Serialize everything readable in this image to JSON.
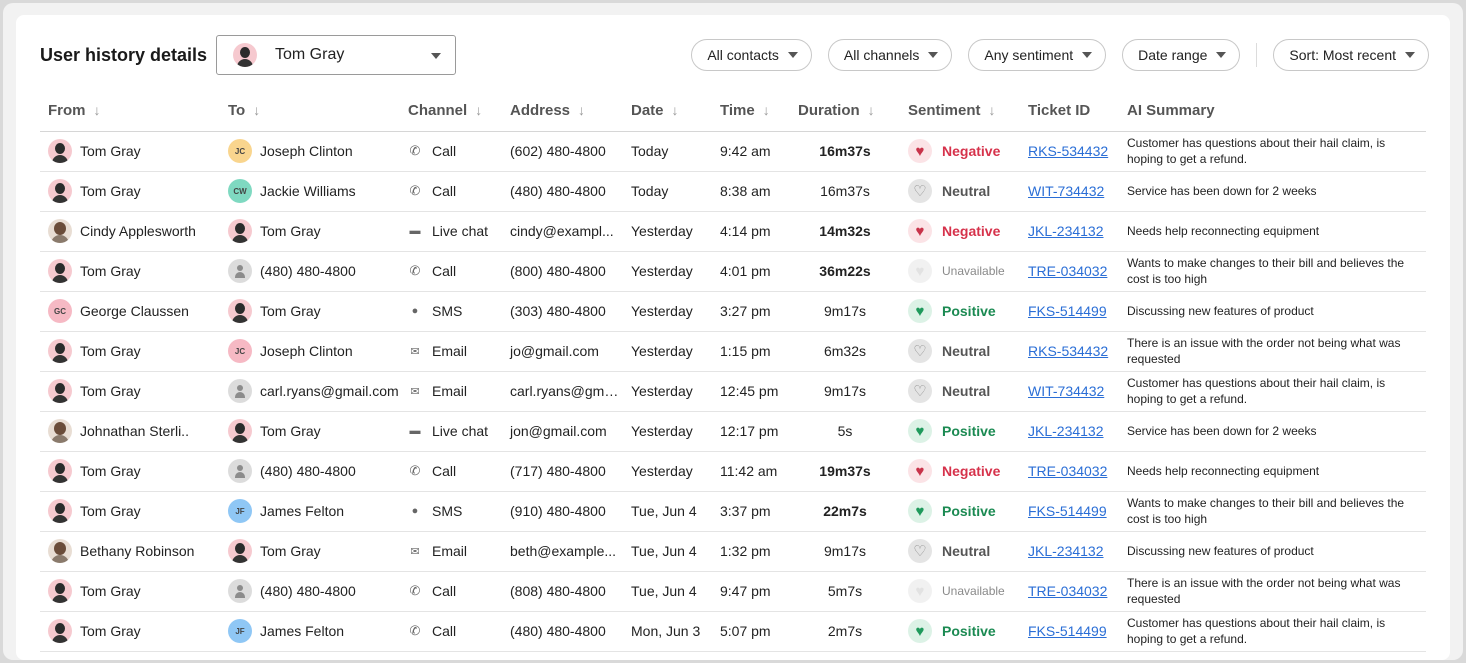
{
  "header": {
    "title": "User history details",
    "user_select": {
      "value": "Tom Gray"
    },
    "filters": [
      {
        "label": "All contacts"
      },
      {
        "label": "All channels"
      },
      {
        "label": "Any sentiment"
      },
      {
        "label": "Date range"
      }
    ],
    "sort": {
      "label": "Sort: Most recent"
    }
  },
  "table": {
    "columns": [
      {
        "label": "From",
        "sortable": true
      },
      {
        "label": "To",
        "sortable": true
      },
      {
        "label": "Channel",
        "sortable": true
      },
      {
        "label": "Address",
        "sortable": true
      },
      {
        "label": "Date",
        "sortable": true
      },
      {
        "label": "Time",
        "sortable": true
      },
      {
        "label": "Duration",
        "sortable": true
      },
      {
        "label": "Sentiment",
        "sortable": true
      },
      {
        "label": "Ticket ID",
        "sortable": false
      },
      {
        "label": "AI Summary",
        "sortable": false
      }
    ],
    "rows": [
      {
        "from": {
          "name": "Tom Gray",
          "avatar": "tom"
        },
        "to": {
          "name": "Joseph Clinton",
          "avatar": "initials",
          "initials": "JC",
          "color": "#f9d58e"
        },
        "channel": {
          "label": "Call",
          "icon": "phone-icon"
        },
        "address": "(602) 480-4800",
        "date": "Today",
        "time": "9:42 am",
        "duration": "16m37s",
        "duration_bold": true,
        "sentiment": "Negative",
        "sentiment_type": "neg",
        "ticket": "RKS-534432",
        "summary": "Customer has questions about their hail claim, is hoping to get a refund."
      },
      {
        "from": {
          "name": "Tom Gray",
          "avatar": "tom"
        },
        "to": {
          "name": "Jackie Williams",
          "avatar": "initials",
          "initials": "CW",
          "color": "#7fd9c1"
        },
        "channel": {
          "label": "Call",
          "icon": "phone-icon"
        },
        "address": "(480) 480-4800",
        "date": "Today",
        "time": "8:38 am",
        "duration": "16m37s",
        "duration_bold": false,
        "sentiment": "Neutral",
        "sentiment_type": "neu",
        "ticket": "WIT-734432",
        "summary": "Service has been down for 2 weeks"
      },
      {
        "from": {
          "name": "Cindy Applesworth",
          "avatar": "photo"
        },
        "to": {
          "name": "Tom Gray",
          "avatar": "tom"
        },
        "channel": {
          "label": "Live chat",
          "icon": "chat-icon"
        },
        "address": "cindy@exampl...",
        "date": "Yesterday",
        "time": "4:14 pm",
        "duration": "14m32s",
        "duration_bold": true,
        "sentiment": "Negative",
        "sentiment_type": "neg",
        "ticket": "JKL-234132",
        "summary": "Needs help reconnecting equipment"
      },
      {
        "from": {
          "name": "Tom Gray",
          "avatar": "tom"
        },
        "to": {
          "name": "(480) 480-4800",
          "avatar": "generic"
        },
        "channel": {
          "label": "Call",
          "icon": "phone-icon"
        },
        "address": "(800) 480-4800",
        "date": "Yesterday",
        "time": "4:01 pm",
        "duration": "36m22s",
        "duration_bold": true,
        "sentiment": "Unavailable",
        "sentiment_type": "una",
        "ticket": "TRE-034032",
        "summary": "Wants to make changes to their bill and believes the cost is too high"
      },
      {
        "from": {
          "name": "George Claussen",
          "avatar": "initials",
          "initials": "GC",
          "color": "#f6b9c4"
        },
        "to": {
          "name": "Tom Gray",
          "avatar": "tom"
        },
        "channel": {
          "label": "SMS",
          "icon": "sms-icon"
        },
        "address": "(303) 480-4800",
        "date": "Yesterday",
        "time": "3:27 pm",
        "duration": "9m17s",
        "duration_bold": false,
        "sentiment": "Positive",
        "sentiment_type": "pos",
        "ticket": "FKS-514499",
        "summary": "Discussing new features of product"
      },
      {
        "from": {
          "name": "Tom Gray",
          "avatar": "tom"
        },
        "to": {
          "name": "Joseph Clinton",
          "avatar": "initials",
          "initials": "JC",
          "color": "#f6b9c4"
        },
        "channel": {
          "label": "Email",
          "icon": "email-icon"
        },
        "address": "jo@gmail.com",
        "date": "Yesterday",
        "time": "1:15 pm",
        "duration": "6m32s",
        "duration_bold": false,
        "sentiment": "Neutral",
        "sentiment_type": "neu",
        "ticket": "RKS-534432",
        "summary": "There is an issue with the order not being what was requested"
      },
      {
        "from": {
          "name": "Tom Gray",
          "avatar": "tom"
        },
        "to": {
          "name": "carl.ryans@gmail.com",
          "avatar": "generic"
        },
        "channel": {
          "label": "Email",
          "icon": "email-icon"
        },
        "address": "carl.ryans@gma...",
        "date": "Yesterday",
        "time": "12:45 pm",
        "duration": "9m17s",
        "duration_bold": false,
        "sentiment": "Neutral",
        "sentiment_type": "neu",
        "ticket": "WIT-734432",
        "summary": "Customer has questions about their hail claim, is hoping to get a refund."
      },
      {
        "from": {
          "name": "Johnathan Sterli..",
          "avatar": "photo"
        },
        "to": {
          "name": "Tom Gray",
          "avatar": "tom"
        },
        "channel": {
          "label": "Live chat",
          "icon": "chat-icon"
        },
        "address": "jon@gmail.com",
        "date": "Yesterday",
        "time": "12:17 pm",
        "duration": "5s",
        "duration_bold": false,
        "sentiment": "Positive",
        "sentiment_type": "pos",
        "ticket": "JKL-234132",
        "summary": "Service has been down for 2 weeks"
      },
      {
        "from": {
          "name": "Tom Gray",
          "avatar": "tom"
        },
        "to": {
          "name": "(480) 480-4800",
          "avatar": "generic"
        },
        "channel": {
          "label": "Call",
          "icon": "phone-icon"
        },
        "address": "(717) 480-4800",
        "date": "Yesterday",
        "time": "11:42 am",
        "duration": "19m37s",
        "duration_bold": true,
        "sentiment": "Negative",
        "sentiment_type": "neg",
        "ticket": "TRE-034032",
        "summary": "Needs help reconnecting equipment"
      },
      {
        "from": {
          "name": "Tom Gray",
          "avatar": "tom"
        },
        "to": {
          "name": "James Felton",
          "avatar": "initials",
          "initials": "JF",
          "color": "#8fc7f5"
        },
        "channel": {
          "label": "SMS",
          "icon": "sms-icon"
        },
        "address": "(910) 480-4800",
        "date": "Tue, Jun 4",
        "time": "3:37 pm",
        "duration": "22m7s",
        "duration_bold": true,
        "sentiment": "Positive",
        "sentiment_type": "pos",
        "ticket": "FKS-514499",
        "summary": "Wants to make changes to their bill and believes the cost is too high"
      },
      {
        "from": {
          "name": "Bethany Robinson",
          "avatar": "photo"
        },
        "to": {
          "name": "Tom Gray",
          "avatar": "tom"
        },
        "channel": {
          "label": "Email",
          "icon": "email-icon"
        },
        "address": "beth@example...",
        "date": "Tue, Jun 4",
        "time": "1:32 pm",
        "duration": "9m17s",
        "duration_bold": false,
        "sentiment": "Neutral",
        "sentiment_type": "neu",
        "ticket": "JKL-234132",
        "summary": "Discussing new features of product"
      },
      {
        "from": {
          "name": "Tom Gray",
          "avatar": "tom"
        },
        "to": {
          "name": "(480) 480-4800",
          "avatar": "generic"
        },
        "channel": {
          "label": "Call",
          "icon": "phone-icon"
        },
        "address": "(808) 480-4800",
        "date": "Tue, Jun 4",
        "time": "9:47 pm",
        "duration": "5m7s",
        "duration_bold": false,
        "sentiment": "Unavailable",
        "sentiment_type": "una",
        "ticket": "TRE-034032",
        "summary": "There is an issue with the order not being what was requested"
      },
      {
        "from": {
          "name": "Tom Gray",
          "avatar": "tom"
        },
        "to": {
          "name": "James Felton",
          "avatar": "initials",
          "initials": "JF",
          "color": "#8fc7f5"
        },
        "channel": {
          "label": "Call",
          "icon": "phone-icon"
        },
        "address": "(480) 480-4800",
        "date": "Mon, Jun 3",
        "time": "5:07 pm",
        "duration": "2m7s",
        "duration_bold": false,
        "sentiment": "Positive",
        "sentiment_type": "pos",
        "ticket": "FKS-514499",
        "summary": "Customer has questions about their hail claim, is hoping to get a refund."
      }
    ]
  }
}
